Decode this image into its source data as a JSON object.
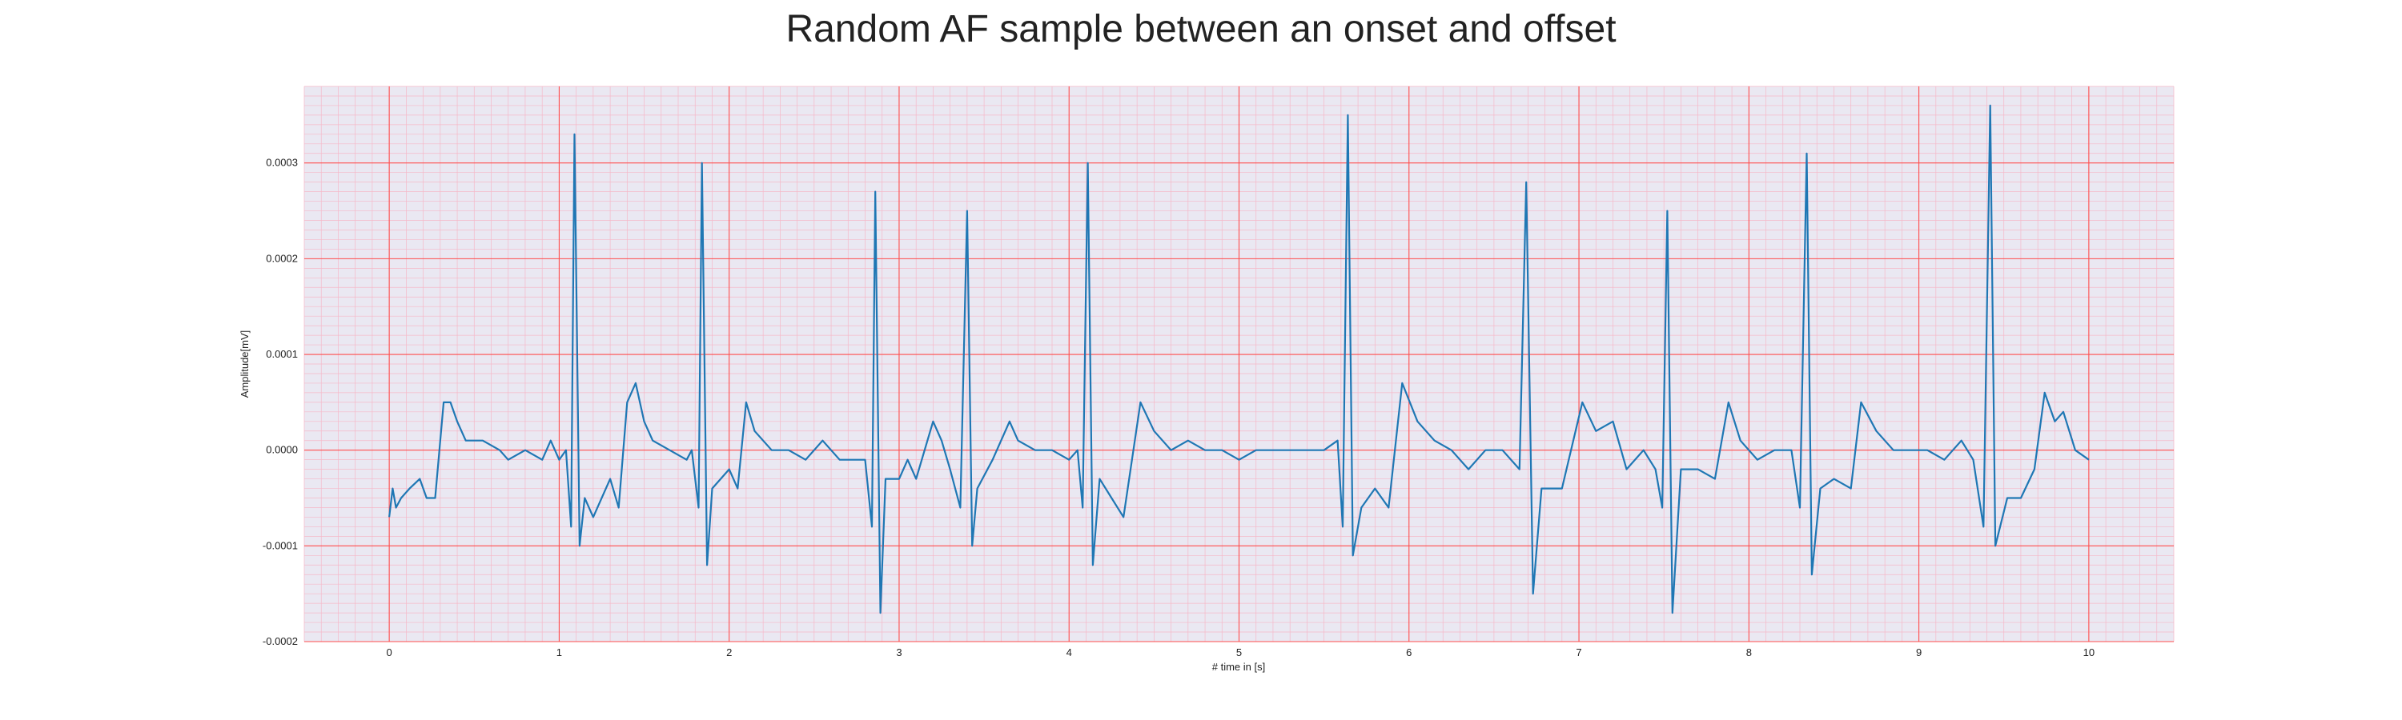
{
  "chart_data": {
    "type": "line",
    "title": "Random AF sample between an onset and offset",
    "xlabel": "# time in [s]",
    "ylabel": "Amplitude[mV]",
    "xlim": [
      -0.5,
      10.5
    ],
    "ylim": [
      -0.0002,
      0.00038
    ],
    "xticks": [
      0,
      1,
      2,
      3,
      4,
      5,
      6,
      7,
      8,
      9,
      10
    ],
    "yticks": [
      -0.0002,
      -0.0001,
      0.0,
      0.0001,
      0.0002,
      0.0003
    ],
    "ytick_labels": [
      "-0.0002",
      "-0.0001",
      "0.0000",
      "0.0001",
      "0.0002",
      "0.0003"
    ],
    "grid": true,
    "minor_grid": true,
    "colors": {
      "line": "#1f77b4",
      "major_grid": "#ff4d4d",
      "minor_grid": "#f5b8c8",
      "plot_background": "#eae8f2"
    },
    "series": [
      {
        "color": "#1f77b4",
        "points": [
          [
            0.0,
            -7e-05
          ],
          [
            0.02,
            -4e-05
          ],
          [
            0.04,
            -6e-05
          ],
          [
            0.07,
            -5e-05
          ],
          [
            0.12,
            -4e-05
          ],
          [
            0.18,
            -3e-05
          ],
          [
            0.22,
            -5e-05
          ],
          [
            0.27,
            -5e-05
          ],
          [
            0.32,
            5e-05
          ],
          [
            0.36,
            5e-05
          ],
          [
            0.4,
            3e-05
          ],
          [
            0.45,
            1e-05
          ],
          [
            0.55,
            1e-05
          ],
          [
            0.65,
            0.0
          ],
          [
            0.7,
            -1e-05
          ],
          [
            0.8,
            0.0
          ],
          [
            0.9,
            -1e-05
          ],
          [
            0.95,
            1e-05
          ],
          [
            1.0,
            -1e-05
          ],
          [
            1.04,
            0.0
          ],
          [
            1.07,
            -8e-05
          ],
          [
            1.09,
            0.00033
          ],
          [
            1.12,
            -0.0001
          ],
          [
            1.15,
            -5e-05
          ],
          [
            1.2,
            -7e-05
          ],
          [
            1.3,
            -3e-05
          ],
          [
            1.35,
            -6e-05
          ],
          [
            1.4,
            5e-05
          ],
          [
            1.45,
            7e-05
          ],
          [
            1.5,
            3e-05
          ],
          [
            1.55,
            1e-05
          ],
          [
            1.65,
            0.0
          ],
          [
            1.75,
            -1e-05
          ],
          [
            1.78,
            0.0
          ],
          [
            1.82,
            -6e-05
          ],
          [
            1.84,
            0.0003
          ],
          [
            1.87,
            -0.00012
          ],
          [
            1.9,
            -4e-05
          ],
          [
            2.0,
            -2e-05
          ],
          [
            2.05,
            -4e-05
          ],
          [
            2.1,
            5e-05
          ],
          [
            2.15,
            2e-05
          ],
          [
            2.25,
            0.0
          ],
          [
            2.35,
            0.0
          ],
          [
            2.45,
            -1e-05
          ],
          [
            2.55,
            1e-05
          ],
          [
            2.65,
            -1e-05
          ],
          [
            2.8,
            -1e-05
          ],
          [
            2.84,
            -8e-05
          ],
          [
            2.86,
            0.00027
          ],
          [
            2.89,
            -0.00017
          ],
          [
            2.92,
            -3e-05
          ],
          [
            3.0,
            -3e-05
          ],
          [
            3.05,
            -1e-05
          ],
          [
            3.1,
            -3e-05
          ],
          [
            3.2,
            3e-05
          ],
          [
            3.25,
            1e-05
          ],
          [
            3.3,
            -2e-05
          ],
          [
            3.36,
            -6e-05
          ],
          [
            3.4,
            0.00025
          ],
          [
            3.43,
            -0.0001
          ],
          [
            3.46,
            -4e-05
          ],
          [
            3.55,
            -1e-05
          ],
          [
            3.65,
            3e-05
          ],
          [
            3.7,
            1e-05
          ],
          [
            3.8,
            0.0
          ],
          [
            3.9,
            0.0
          ],
          [
            4.0,
            -1e-05
          ],
          [
            4.05,
            0.0
          ],
          [
            4.08,
            -6e-05
          ],
          [
            4.11,
            0.0003
          ],
          [
            4.14,
            -0.00012
          ],
          [
            4.18,
            -3e-05
          ],
          [
            4.25,
            -5e-05
          ],
          [
            4.32,
            -7e-05
          ],
          [
            4.42,
            5e-05
          ],
          [
            4.5,
            2e-05
          ],
          [
            4.6,
            0.0
          ],
          [
            4.7,
            1e-05
          ],
          [
            4.8,
            0.0
          ],
          [
            4.9,
            0.0
          ],
          [
            5.0,
            -1e-05
          ],
          [
            5.1,
            0.0
          ],
          [
            5.2,
            0.0
          ],
          [
            5.3,
            0.0
          ],
          [
            5.4,
            0.0
          ],
          [
            5.5,
            0.0
          ],
          [
            5.58,
            1e-05
          ],
          [
            5.61,
            -8e-05
          ],
          [
            5.64,
            0.00035
          ],
          [
            5.67,
            -0.00011
          ],
          [
            5.72,
            -6e-05
          ],
          [
            5.8,
            -4e-05
          ],
          [
            5.88,
            -6e-05
          ],
          [
            5.96,
            7e-05
          ],
          [
            6.05,
            3e-05
          ],
          [
            6.15,
            1e-05
          ],
          [
            6.25,
            0.0
          ],
          [
            6.35,
            -2e-05
          ],
          [
            6.45,
            0.0
          ],
          [
            6.55,
            0.0
          ],
          [
            6.65,
            -2e-05
          ],
          [
            6.69,
            0.00028
          ],
          [
            6.73,
            -0.00015
          ],
          [
            6.78,
            -4e-05
          ],
          [
            6.9,
            -4e-05
          ],
          [
            7.02,
            5e-05
          ],
          [
            7.1,
            2e-05
          ],
          [
            7.2,
            3e-05
          ],
          [
            7.28,
            -2e-05
          ],
          [
            7.38,
            0.0
          ],
          [
            7.45,
            -2e-05
          ],
          [
            7.49,
            -6e-05
          ],
          [
            7.52,
            0.00025
          ],
          [
            7.55,
            -0.00017
          ],
          [
            7.6,
            -2e-05
          ],
          [
            7.7,
            -2e-05
          ],
          [
            7.8,
            -3e-05
          ],
          [
            7.88,
            5e-05
          ],
          [
            7.95,
            1e-05
          ],
          [
            8.05,
            -1e-05
          ],
          [
            8.15,
            0.0
          ],
          [
            8.25,
            0.0
          ],
          [
            8.3,
            -6e-05
          ],
          [
            8.34,
            0.00031
          ],
          [
            8.37,
            -0.00013
          ],
          [
            8.42,
            -4e-05
          ],
          [
            8.5,
            -3e-05
          ],
          [
            8.6,
            -4e-05
          ],
          [
            8.66,
            5e-05
          ],
          [
            8.75,
            2e-05
          ],
          [
            8.85,
            0.0
          ],
          [
            8.95,
            0.0
          ],
          [
            9.05,
            0.0
          ],
          [
            9.15,
            -1e-05
          ],
          [
            9.25,
            1e-05
          ],
          [
            9.32,
            -1e-05
          ],
          [
            9.38,
            -8e-05
          ],
          [
            9.42,
            0.00036
          ],
          [
            9.45,
            -0.0001
          ],
          [
            9.52,
            -5e-05
          ],
          [
            9.6,
            -5e-05
          ],
          [
            9.68,
            -2e-05
          ],
          [
            9.74,
            6e-05
          ],
          [
            9.8,
            3e-05
          ],
          [
            9.85,
            4e-05
          ],
          [
            9.92,
            0.0
          ],
          [
            10.0,
            -1e-05
          ]
        ]
      }
    ]
  }
}
